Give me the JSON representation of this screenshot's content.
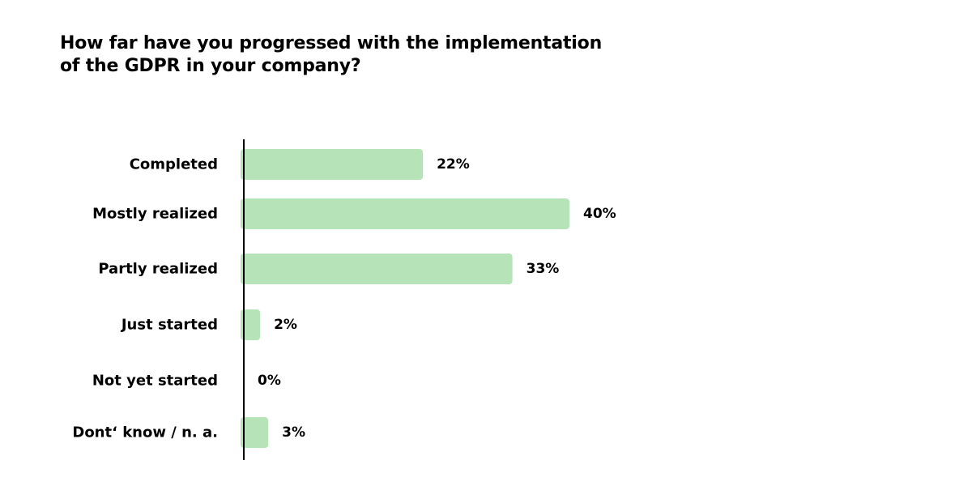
{
  "chart_data": {
    "type": "bar",
    "orientation": "horizontal",
    "title": "How far have you progressed with the implementation of the GDPR in your company?",
    "categories": [
      "Completed",
      "Mostly realized",
      "Partly realized",
      "Just started",
      "Not yet started",
      "Dont‘ know / n. a."
    ],
    "values": [
      22,
      40,
      33,
      2,
      0,
      3
    ],
    "value_labels": [
      "22%",
      "40%",
      "33%",
      "2%",
      "0%",
      "3%"
    ],
    "unit": "%",
    "xlim": [
      0,
      40
    ],
    "grid": false,
    "legend": "none",
    "colors": {
      "bar": "#b6e4b8",
      "axis": "#000000",
      "text": "#000000"
    }
  }
}
